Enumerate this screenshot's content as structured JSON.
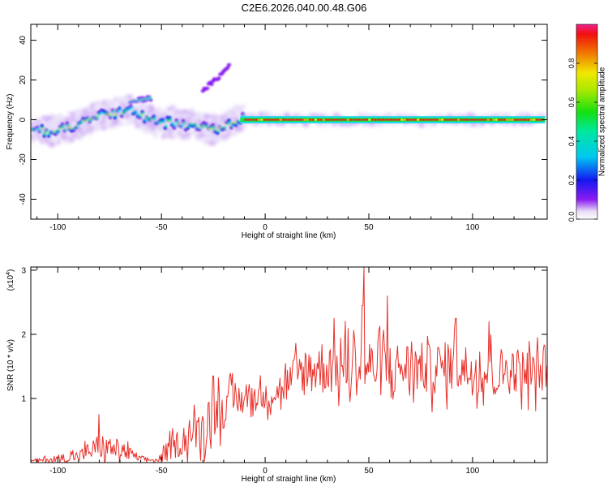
{
  "title": "C2E6.2026.040.00.48.G06",
  "colors": {
    "signal": "#e8302a",
    "axis": "#000000",
    "halo": "#d9c7f2"
  },
  "chart_data": [
    {
      "type": "heatmap",
      "id": "spectrogram",
      "xlabel": "Height of straight line (km)",
      "ylabel": "Frequency (Hz)",
      "xlim": [
        -113,
        136
      ],
      "ylim": [
        -50,
        48
      ],
      "xticks": [
        -100,
        -50,
        0,
        50,
        100
      ],
      "yticks": [
        -40,
        -20,
        0,
        20,
        40
      ],
      "colorbar": {
        "label": "Normalized spectral amplitude",
        "range": [
          0.0,
          1.0
        ],
        "ticks": [
          0.0,
          0.2,
          0.4,
          0.6,
          0.8
        ]
      },
      "ridge": {
        "x": [
          -112,
          -105,
          -100,
          -95,
          -90,
          -85,
          -80,
          -75,
          -70,
          -65,
          -62,
          -58,
          -55,
          -50,
          -45,
          -40,
          -35,
          -30,
          -25,
          -22,
          -18,
          -15,
          -12,
          -10,
          -5,
          0,
          5,
          10,
          20,
          40,
          60,
          80,
          100,
          120,
          135
        ],
        "y": [
          -5,
          -6,
          -5,
          -4,
          -2,
          0,
          2,
          3,
          4,
          5,
          4,
          1,
          0,
          -2,
          -1,
          -3,
          -2,
          -4,
          -5,
          -4,
          -3,
          -1,
          0,
          1,
          0,
          1,
          0,
          0,
          0,
          0,
          0,
          0,
          0,
          0,
          0
        ]
      },
      "branches": [
        {
          "x": [
            -65,
            -60,
            -55
          ],
          "y": [
            9,
            10,
            11
          ]
        },
        {
          "x": [
            -30,
            -25,
            -20,
            -17
          ],
          "y": [
            15,
            19,
            24,
            28
          ]
        }
      ]
    },
    {
      "type": "line",
      "id": "snr",
      "xlabel": "Height of straight line (km)",
      "ylabel": "SNR (10 * v/v)",
      "multiplier": "(x10",
      "exponent": "4",
      "xlim": [
        -113,
        136
      ],
      "ylim": [
        0,
        3.05
      ],
      "xticks": [
        -100,
        -50,
        0,
        50,
        100
      ],
      "yticks": [
        1,
        2,
        3
      ],
      "envelope": {
        "x": [
          -113,
          -100,
          -90,
          -80,
          -70,
          -60,
          -52,
          -48,
          -40,
          -30,
          -25,
          -20,
          -15,
          -10,
          -5,
          0,
          5,
          10,
          15,
          20,
          30,
          40,
          45,
          50,
          60,
          70,
          80,
          90,
          100,
          110,
          120,
          130,
          136
        ],
        "base": [
          0.02,
          0.06,
          0.1,
          0.25,
          0.2,
          0.06,
          0.03,
          0.15,
          0.35,
          0.55,
          0.8,
          0.85,
          0.95,
          1.0,
          1.05,
          1.0,
          1.1,
          1.2,
          1.35,
          1.45,
          1.5,
          1.5,
          1.55,
          1.5,
          1.45,
          1.5,
          1.45,
          1.5,
          1.45,
          1.4,
          1.45,
          1.4,
          1.45
        ],
        "amp": [
          0.03,
          0.08,
          0.12,
          0.25,
          0.2,
          0.06,
          0.03,
          0.18,
          0.3,
          0.4,
          0.5,
          0.4,
          0.35,
          0.3,
          0.3,
          0.25,
          0.3,
          0.35,
          0.45,
          0.5,
          0.55,
          0.55,
          0.65,
          0.55,
          0.55,
          0.5,
          0.5,
          0.5,
          0.5,
          0.5,
          0.45,
          0.45,
          0.4
        ]
      },
      "peaks": [
        {
          "x": 47.5,
          "y": 3.05
        },
        {
          "x": 59,
          "y": 2.6
        },
        {
          "x": 47,
          "y": 2.45
        },
        {
          "x": 92,
          "y": 2.25
        },
        {
          "x": 108,
          "y": 2.2
        },
        {
          "x": -80,
          "y": 0.75
        },
        {
          "x": -25,
          "y": 1.35
        }
      ]
    }
  ]
}
